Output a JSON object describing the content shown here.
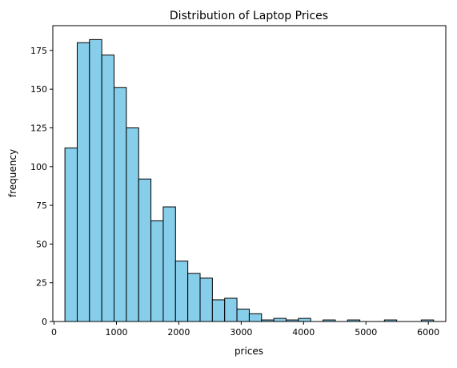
{
  "chart_data": {
    "type": "bar",
    "title": "Distribution of Laptop Prices",
    "xlabel": "prices",
    "ylabel": "frequency",
    "xlim": [
      -20,
      6280
    ],
    "ylim": [
      0,
      191
    ],
    "xticks": [
      0,
      1000,
      2000,
      3000,
      4000,
      5000,
      6000
    ],
    "yticks": [
      0,
      25,
      50,
      75,
      100,
      125,
      150,
      175
    ],
    "bin_start": 174,
    "bin_width": 197,
    "values": [
      112,
      180,
      182,
      172,
      151,
      125,
      92,
      65,
      74,
      39,
      31,
      28,
      14,
      15,
      8,
      5,
      1,
      2,
      1,
      2,
      0,
      1,
      0,
      1,
      0,
      0,
      1,
      0,
      0,
      1
    ],
    "bar_color": "#87ceeb",
    "edge_color": "#000000",
    "grid": false,
    "legend": "none"
  }
}
